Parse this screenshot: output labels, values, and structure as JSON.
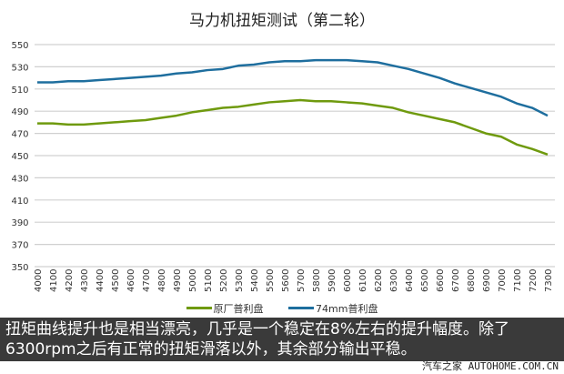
{
  "chart_data": {
    "type": "line",
    "title": "马力机扭矩测试（第二轮）",
    "categories": [
      "4000",
      "4100",
      "4200",
      "4300",
      "4400",
      "4500",
      "4600",
      "4700",
      "4800",
      "4900",
      "5000",
      "5100",
      "5200",
      "5300",
      "5400",
      "5500",
      "5600",
      "5700",
      "5800",
      "5900",
      "6000",
      "6100",
      "6200",
      "6300",
      "6400",
      "6500",
      "6600",
      "6700",
      "6800",
      "6900",
      "7000",
      "7100",
      "7200",
      "7300"
    ],
    "ylim": [
      350,
      550
    ],
    "yticks": [
      350,
      370,
      390,
      410,
      430,
      450,
      470,
      490,
      510,
      530,
      550
    ],
    "grid": true,
    "legend": "bottom",
    "series": [
      {
        "name": "原厂普利盘",
        "color": "#6f9a0e",
        "values": [
          479,
          479,
          478,
          478,
          479,
          480,
          481,
          482,
          484,
          486,
          489,
          491,
          493,
          494,
          496,
          498,
          499,
          500,
          499,
          499,
          498,
          497,
          495,
          493,
          489,
          486,
          483,
          480,
          475,
          470,
          467,
          460,
          456,
          451
        ]
      },
      {
        "name": "74mm普利盘",
        "color": "#1e6e9e",
        "values": [
          516,
          516,
          517,
          517,
          518,
          519,
          520,
          521,
          522,
          524,
          525,
          527,
          528,
          531,
          532,
          534,
          535,
          535,
          536,
          536,
          536,
          535,
          534,
          531,
          528,
          524,
          520,
          515,
          511,
          507,
          503,
          497,
          493,
          486
        ]
      }
    ]
  },
  "caption": "扭矩曲线提升也是相当漂亮，几乎是一个稳定在8%左右的提升幅度。除了6300rpm之后有正常的扭矩滑落以外，其余部分输出平稳。",
  "watermark": "汽车之家 AUTOHOME.COM.CN"
}
